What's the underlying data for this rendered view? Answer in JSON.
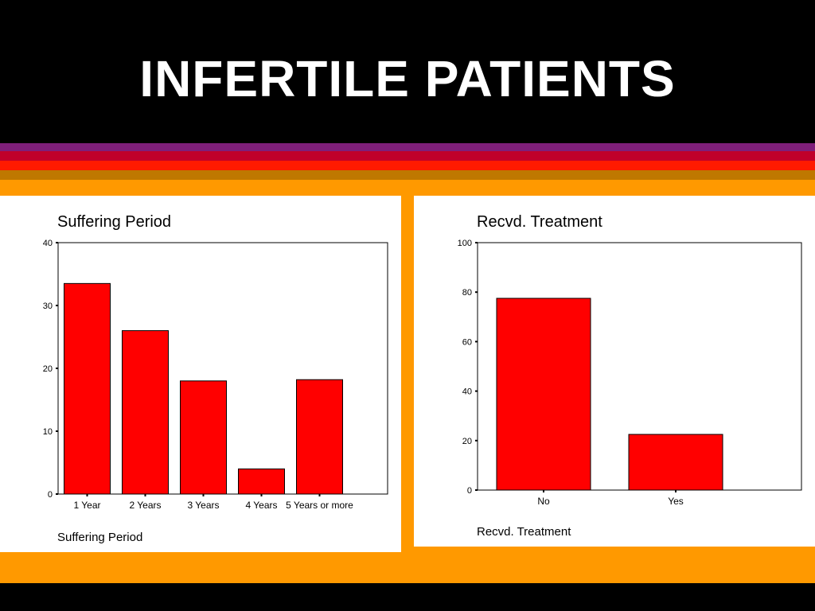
{
  "slide": {
    "title": "INFERTILE PATIENTS"
  },
  "colors": {
    "background": "#ff9900",
    "title_band": "#000000",
    "bar_fill": "#ff0000",
    "stripes": [
      "#7f1f7a",
      "#c0002a",
      "#ff1a00",
      "#bf7800"
    ]
  },
  "chart_data": [
    {
      "type": "bar",
      "title": "Suffering Period",
      "xlabel": "Suffering Period",
      "ylabel": "",
      "categories": [
        "1 Year",
        "2 Years",
        "3 Years",
        "4 Years",
        "5 Years or more"
      ],
      "values": [
        33.5,
        26.0,
        18.0,
        4.0,
        18.2
      ],
      "ylim": [
        0,
        40
      ],
      "yticks": [
        0,
        10,
        20,
        30,
        40
      ],
      "grid": false,
      "legend": "none"
    },
    {
      "type": "bar",
      "title": "Recvd. Treatment",
      "xlabel": "Recvd. Treatment",
      "ylabel": "",
      "categories": [
        "No",
        "Yes"
      ],
      "values": [
        77.5,
        22.5
      ],
      "ylim": [
        0,
        100
      ],
      "yticks": [
        0,
        20,
        40,
        60,
        80,
        100
      ],
      "grid": false,
      "legend": "none"
    }
  ]
}
